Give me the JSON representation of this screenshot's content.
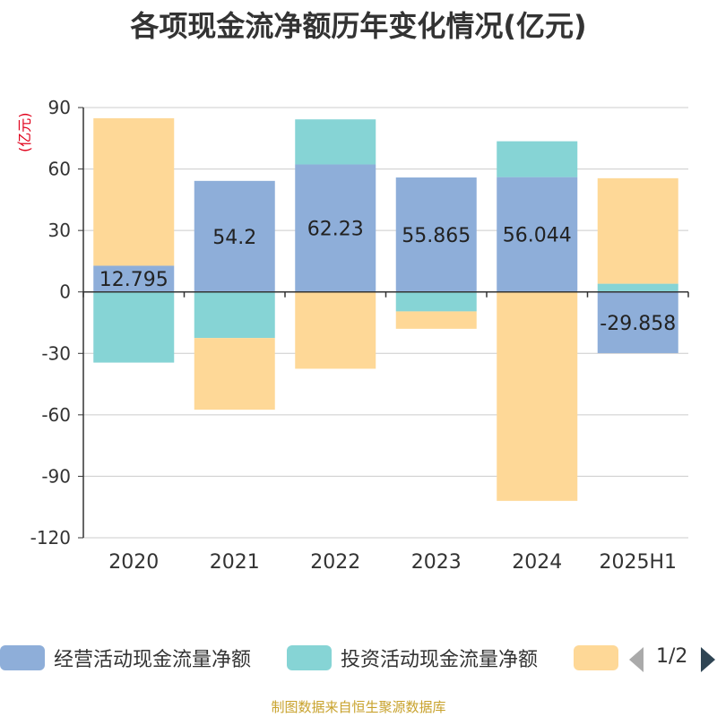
{
  "title": "各项现金流净额历年变化情况(亿元)",
  "unit_label": "(亿元)",
  "footer": "制图数据来自恒生聚源数据库",
  "legend": {
    "page_indicator": "1/2",
    "prev_icon": "triangle-left-icon",
    "next_icon": "triangle-right-icon"
  },
  "chart_data": {
    "type": "bar",
    "stacked": true,
    "categories": [
      "2020",
      "2021",
      "2022",
      "2023",
      "2024",
      "2025H1"
    ],
    "ylim": [
      -120,
      90
    ],
    "yticks": [
      90,
      60,
      30,
      0,
      -30,
      -60,
      -90,
      -120
    ],
    "grid": true,
    "legend_position": "bottom",
    "series": [
      {
        "name": "经营活动现金流量净额",
        "color": "#8eaed9",
        "values": [
          12.795,
          54.2,
          62.23,
          55.865,
          56.044,
          -29.858
        ],
        "labels": [
          "12.795",
          "54.2",
          "62.23",
          "55.865",
          "56.044",
          "-29.858"
        ]
      },
      {
        "name": "投资活动现金流量净额",
        "color": "#86d4d5",
        "values": [
          -34.5,
          -22.5,
          22.0,
          -9.5,
          17.5,
          4.0
        ]
      },
      {
        "name": "",
        "color": "#fed897",
        "values": [
          72.0,
          -35.0,
          -37.5,
          -8.5,
          -102.0,
          51.5
        ]
      }
    ]
  }
}
